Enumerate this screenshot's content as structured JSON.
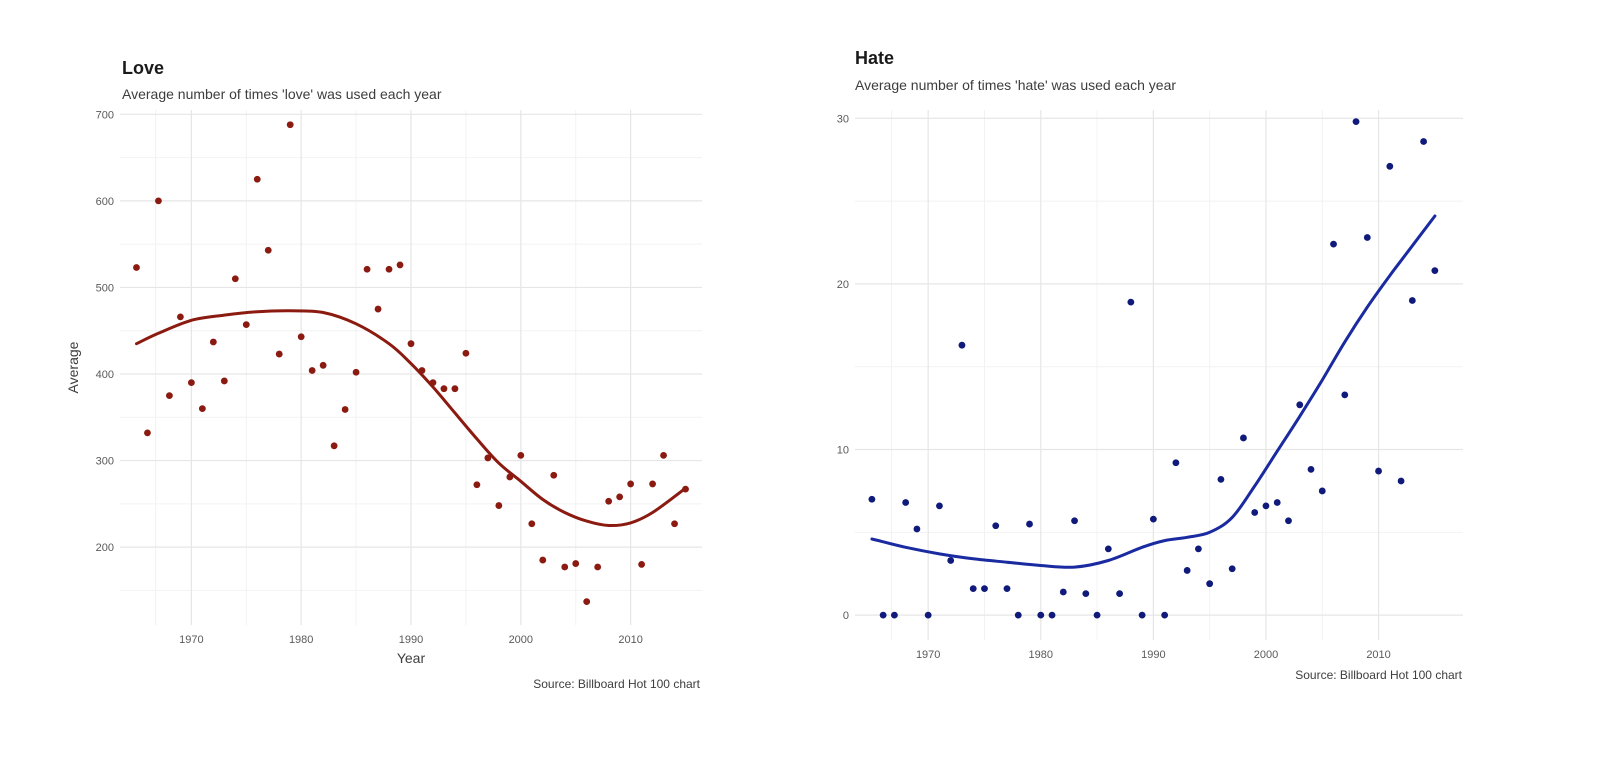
{
  "chart_data": [
    {
      "type": "scatter",
      "title": "Love",
      "subtitle": "Average number of times 'love' was used each year",
      "caption": "Source: Billboard Hot 100 chart",
      "xlabel": "Year",
      "ylabel": "Average",
      "xlim": [
        1963.5,
        2016.5
      ],
      "ylim": [
        110,
        705
      ],
      "xticks": [
        1970,
        1980,
        1990,
        2000,
        2010
      ],
      "yticks": [
        200,
        300,
        400,
        500,
        600,
        700
      ],
      "grid": true,
      "point_color": "#8b1a10",
      "line_color": "#8b1a10",
      "series": [
        {
          "kind": "points",
          "x": [
            1965,
            1966,
            1967,
            1968,
            1969,
            1970,
            1971,
            1972,
            1973,
            1974,
            1975,
            1976,
            1977,
            1978,
            1979,
            1980,
            1981,
            1982,
            1983,
            1984,
            1985,
            1986,
            1987,
            1988,
            1989,
            1990,
            1991,
            1992,
            1993,
            1994,
            1995,
            1996,
            1997,
            1998,
            1999,
            2000,
            2001,
            2002,
            2003,
            2004,
            2005,
            2006,
            2007,
            2008,
            2009,
            2010,
            2011,
            2012,
            2013,
            2014,
            2015
          ],
          "y": [
            523,
            332,
            600,
            375,
            466,
            390,
            360,
            437,
            392,
            510,
            457,
            625,
            543,
            423,
            688,
            443,
            404,
            410,
            317,
            359,
            402,
            521,
            475,
            521,
            526,
            435,
            404,
            390,
            383,
            383,
            424,
            272,
            303,
            248,
            281,
            306,
            227,
            185,
            283,
            177,
            181,
            137,
            177,
            253,
            258,
            273,
            180,
            273,
            306,
            227,
            267
          ]
        },
        {
          "kind": "smooth",
          "x": [
            1965,
            1967,
            1970,
            1973,
            1976,
            1979,
            1982,
            1985,
            1988,
            1990,
            1992,
            1994,
            1996,
            1998,
            2000,
            2002,
            2004,
            2006,
            2008,
            2010,
            2012,
            2015
          ],
          "y": [
            435,
            447,
            462,
            468,
            472,
            473,
            471,
            458,
            435,
            412,
            385,
            355,
            325,
            297,
            276,
            255,
            240,
            230,
            225,
            228,
            240,
            268
          ]
        }
      ]
    },
    {
      "type": "scatter",
      "title": "Hate",
      "subtitle": "Average number of times 'hate' was used each year",
      "caption": "Source: Billboard Hot 100 chart",
      "xlabel": "",
      "ylabel": "",
      "xlim": [
        1963.5,
        2017.5
      ],
      "ylim": [
        -1.5,
        30.5
      ],
      "xticks": [
        1970,
        1980,
        1990,
        2000,
        2010
      ],
      "yticks": [
        0,
        10,
        20,
        30
      ],
      "grid": true,
      "point_color": "#0f1a7a",
      "line_color": "#1a2aa0",
      "series": [
        {
          "kind": "points",
          "x": [
            1965,
            1966,
            1967,
            1968,
            1969,
            1970,
            1971,
            1972,
            1973,
            1974,
            1975,
            1976,
            1977,
            1978,
            1979,
            1980,
            1981,
            1982,
            1983,
            1984,
            1985,
            1986,
            1987,
            1988,
            1989,
            1990,
            1991,
            1992,
            1993,
            1994,
            1995,
            1996,
            1997,
            1998,
            1999,
            2000,
            2001,
            2002,
            2003,
            2004,
            2005,
            2006,
            2007,
            2008,
            2009,
            2010,
            2011,
            2012,
            2013,
            2014,
            2015
          ],
          "y": [
            7.0,
            0,
            0,
            6.8,
            5.2,
            0,
            6.6,
            3.3,
            16.3,
            1.6,
            1.6,
            5.4,
            1.6,
            0,
            5.5,
            0,
            0,
            1.4,
            5.7,
            1.3,
            0,
            4.0,
            1.3,
            18.9,
            0,
            5.8,
            0,
            9.2,
            2.7,
            4.0,
            1.9,
            8.2,
            2.8,
            10.7,
            6.2,
            6.6,
            6.8,
            5.7,
            12.7,
            8.8,
            7.5,
            22.4,
            13.3,
            29.8,
            22.8,
            8.7,
            27.1,
            8.1,
            19.0,
            28.6,
            20.8
          ]
        },
        {
          "kind": "smooth",
          "x": [
            1965,
            1968,
            1971,
            1974,
            1977,
            1980,
            1983,
            1986,
            1989,
            1991,
            1993,
            1995,
            1997,
            1999,
            2001,
            2003,
            2005,
            2007,
            2009,
            2011,
            2013,
            2015
          ],
          "y": [
            4.6,
            4.1,
            3.7,
            3.4,
            3.2,
            3.0,
            2.9,
            3.3,
            4.1,
            4.5,
            4.7,
            5.0,
            5.9,
            7.8,
            9.9,
            12.0,
            14.2,
            16.5,
            18.6,
            20.5,
            22.3,
            24.1
          ]
        }
      ]
    }
  ]
}
